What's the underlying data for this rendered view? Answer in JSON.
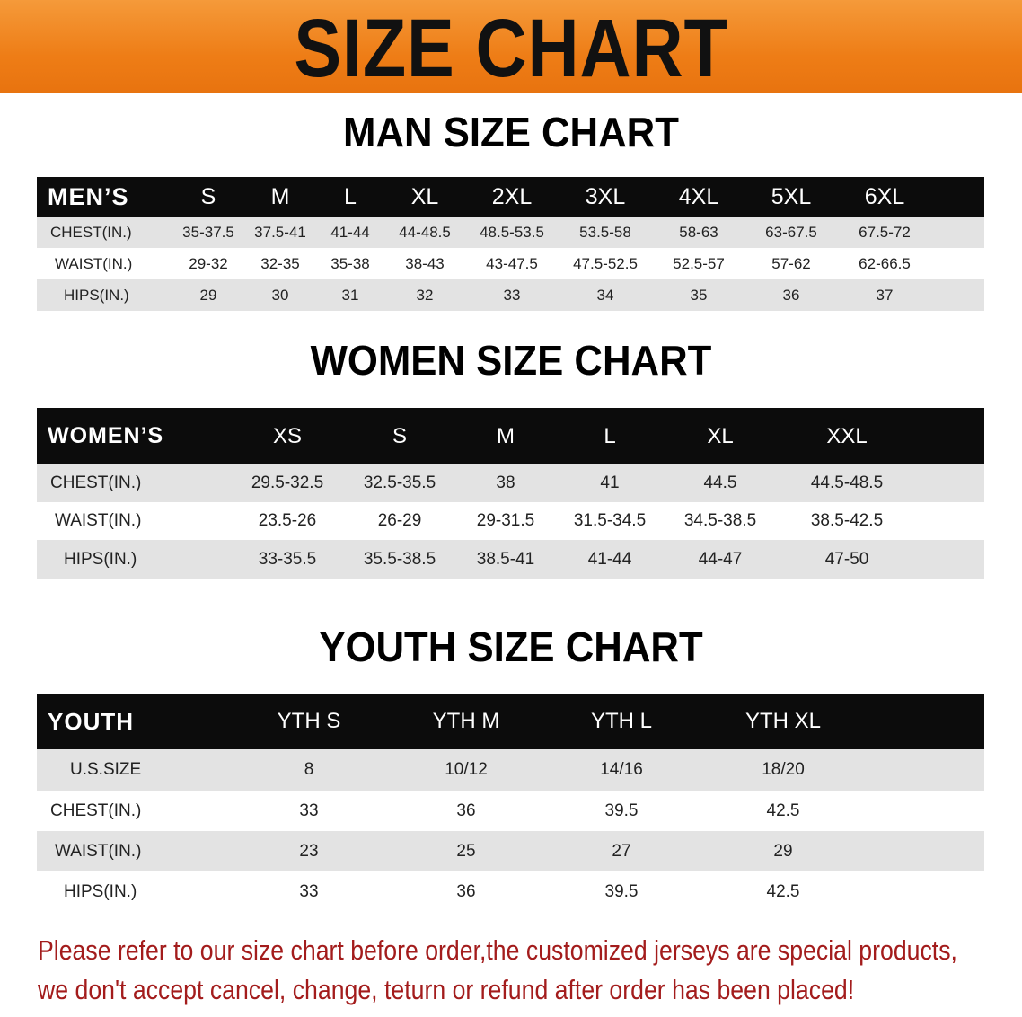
{
  "banner_title": "SIZE CHART",
  "men": {
    "title": "MAN SIZE CHART",
    "header": [
      "MEN’S",
      "S",
      "M",
      "L",
      "XL",
      "2XL",
      "3XL",
      "4XL",
      "5XL",
      "6XL"
    ],
    "rows": [
      [
        "CHEST(IN.)",
        "35-37.5",
        "37.5-41",
        "41-44",
        "44-48.5",
        "48.5-53.5",
        "53.5-58",
        "58-63",
        "63-67.5",
        "67.5-72"
      ],
      [
        "WAIST(IN.)",
        "29-32",
        "32-35",
        "35-38",
        "38-43",
        "43-47.5",
        "47.5-52.5",
        "52.5-57",
        "57-62",
        "62-66.5"
      ],
      [
        "HIPS(IN.)",
        "29",
        "30",
        "31",
        "32",
        "33",
        "34",
        "35",
        "36",
        "37"
      ]
    ]
  },
  "women": {
    "title": "WOMEN SIZE CHART",
    "header": [
      "WOMEN’S",
      "XS",
      "S",
      "M",
      "L",
      "XL",
      "XXL"
    ],
    "rows": [
      [
        "CHEST(IN.)",
        "29.5-32.5",
        "32.5-35.5",
        "38",
        "41",
        "44.5",
        "44.5-48.5"
      ],
      [
        "WAIST(IN.)",
        "23.5-26",
        "26-29",
        "29-31.5",
        "31.5-34.5",
        "34.5-38.5",
        "38.5-42.5"
      ],
      [
        "HIPS(IN.)",
        "33-35.5",
        "35.5-38.5",
        "38.5-41",
        "41-44",
        "44-47",
        "47-50"
      ]
    ]
  },
  "youth": {
    "title": "YOUTH SIZE CHART",
    "header": [
      "YOUTH",
      "YTH S",
      "YTH M",
      "YTH L",
      "YTH XL"
    ],
    "rows": [
      [
        "U.S.SIZE",
        "8",
        "10/12",
        "14/16",
        "18/20"
      ],
      [
        "CHEST(IN.)",
        "33",
        "36",
        "39.5",
        "42.5"
      ],
      [
        "WAIST(IN.)",
        "23",
        "25",
        "27",
        "29"
      ],
      [
        "HIPS(IN.)",
        "33",
        "36",
        "39.5",
        "42.5"
      ]
    ]
  },
  "notice": [
    "Please refer to our size chart before order,the customized jerseys are special products,",
    "we don't accept cancel, change, teturn or refund after order has been placed!"
  ],
  "colors": {
    "banner": "#ee7d16",
    "header_row": "#0c0c0c",
    "stripe": "#e3e3e3",
    "notice": "#a31c1c"
  }
}
